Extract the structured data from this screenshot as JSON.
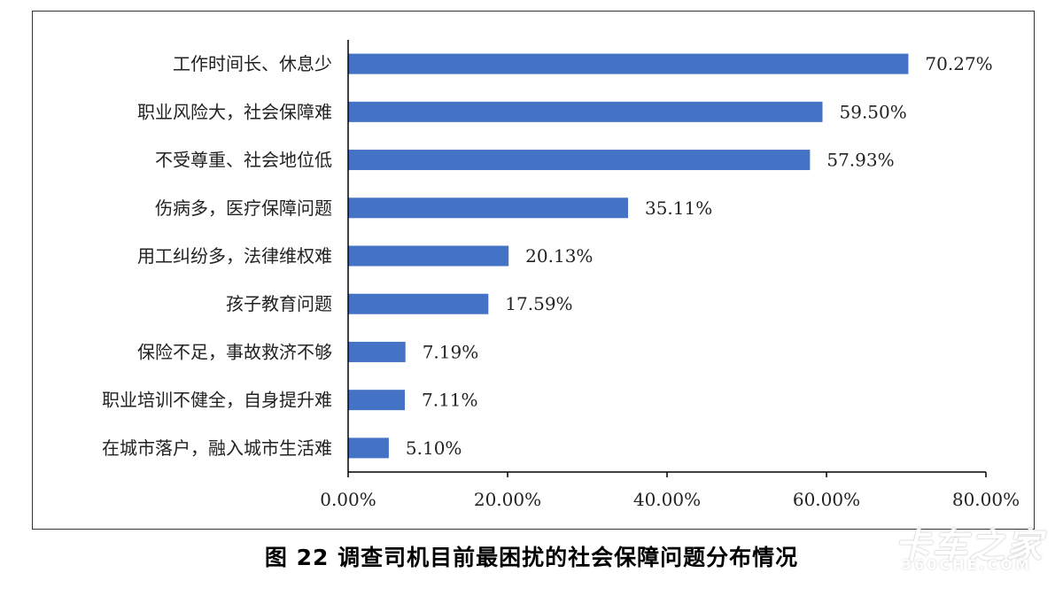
{
  "caption": "图 22  调查司机目前最困扰的社会保障问题分布情况",
  "watermark": {
    "main": "卡车之家",
    "sub": "360CHE.COM"
  },
  "colors": {
    "bar": "#4472C4",
    "axis": "#000000",
    "text": "#222222"
  },
  "chart_data": {
    "type": "bar",
    "orientation": "horizontal",
    "categories": [
      "工作时间长、休息少",
      "职业风险大，社会保障难",
      "不受尊重、社会地位低",
      "伤病多，医疗保障问题",
      "用工纠纷多，法律维权难",
      "孩子教育问题",
      "保险不足，事故救济不够",
      "职业培训不健全，自身提升难",
      "在城市落户，融入城市生活难"
    ],
    "values": [
      70.27,
      59.5,
      57.93,
      35.11,
      20.13,
      17.59,
      7.19,
      7.11,
      5.1
    ],
    "value_labels": [
      "70.27%",
      "59.50%",
      "57.93%",
      "35.11%",
      "20.13%",
      "17.59%",
      "7.19%",
      "7.11%",
      "5.10%"
    ],
    "xlim": [
      0,
      80
    ],
    "x_ticks": [
      0,
      20,
      40,
      60,
      80
    ],
    "x_tick_labels": [
      "0.00%",
      "20.00%",
      "40.00%",
      "60.00%",
      "80.00%"
    ],
    "title": "",
    "xlabel": "",
    "ylabel": "",
    "grid": false,
    "legend": "none"
  }
}
